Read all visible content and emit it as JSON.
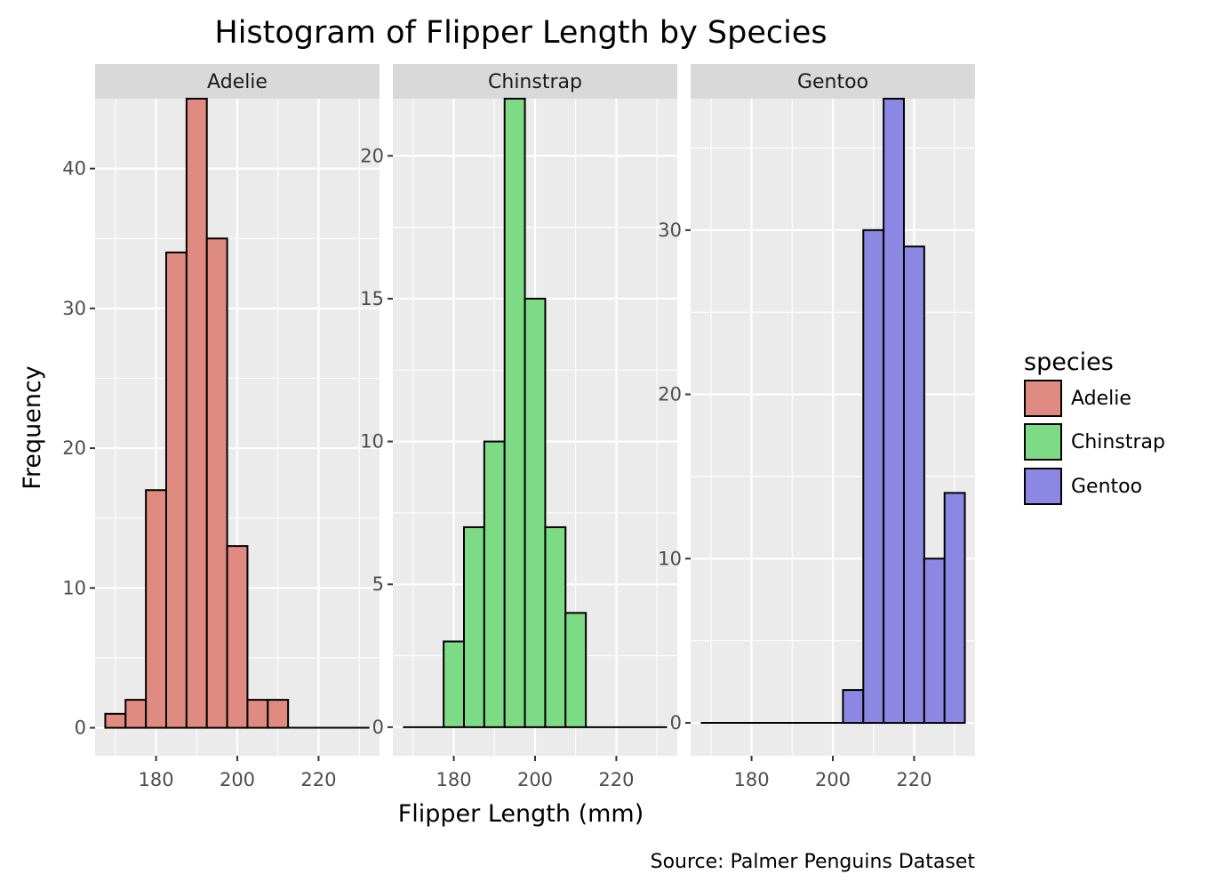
{
  "chart_data": {
    "type": "bar",
    "subtype": "faceted-histogram",
    "title": "Histogram of Flipper Length by Species",
    "xlabel": "Flipper Length (mm)",
    "ylabel": "Frequency",
    "caption": "Source: Palmer Penguins Dataset",
    "xlim": [
      165,
      235
    ],
    "x_ticks": [
      "180",
      "200",
      "220"
    ],
    "x_tick_values": [
      180,
      200,
      220
    ],
    "bin_width": 5,
    "bin_left_edges": [
      167.5,
      172.5,
      177.5,
      182.5,
      187.5,
      192.5,
      197.5,
      202.5,
      207.5,
      212.5,
      217.5,
      222.5,
      227.5
    ],
    "grid": true,
    "legend": {
      "title": "species",
      "placement": "right",
      "entries": [
        "Adelie",
        "Chinstrap",
        "Gentoo"
      ]
    },
    "series": [
      {
        "name": "Adelie",
        "color": "#e08b82",
        "ylim": [
          -2,
          45
        ],
        "y_ticks": [
          "0",
          "10",
          "20",
          "30",
          "40"
        ],
        "y_tick_values": [
          0,
          10,
          20,
          30,
          40
        ],
        "values": [
          1,
          2,
          17,
          34,
          45,
          35,
          13,
          2,
          2,
          0,
          0,
          0,
          0
        ]
      },
      {
        "name": "Chinstrap",
        "color": "#7edb85",
        "ylim": [
          -1,
          22
        ],
        "y_ticks": [
          "0",
          "5",
          "10",
          "15",
          "20"
        ],
        "y_tick_values": [
          0,
          5,
          10,
          15,
          20
        ],
        "values": [
          0,
          0,
          3,
          7,
          10,
          22,
          15,
          7,
          4,
          0,
          0,
          0,
          0
        ]
      },
      {
        "name": "Gentoo",
        "color": "#8c87e3",
        "ylim": [
          -2,
          38
        ],
        "y_ticks": [
          "0",
          "10",
          "20",
          "30"
        ],
        "y_tick_values": [
          0,
          10,
          20,
          30
        ],
        "values": [
          0,
          0,
          0,
          0,
          0,
          0,
          0,
          2,
          30,
          38,
          29,
          10,
          14
        ]
      }
    ]
  }
}
